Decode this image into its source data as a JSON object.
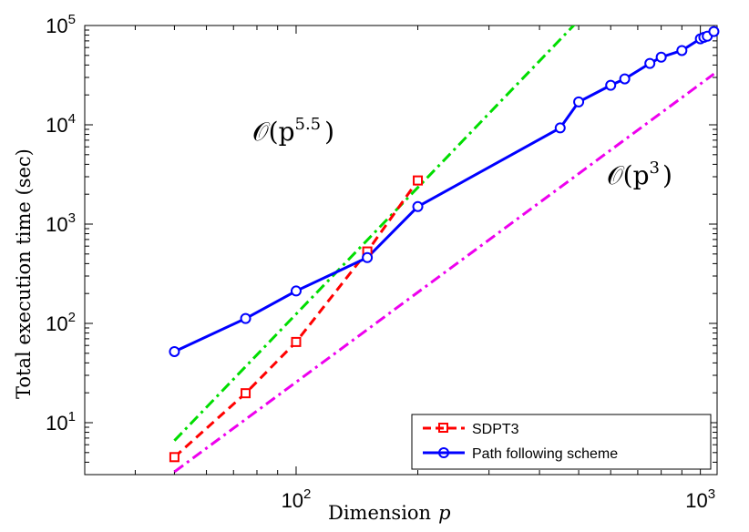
{
  "chart_data": {
    "type": "line",
    "xscale": "log",
    "yscale": "log",
    "xlabel": "Dimension",
    "xlabel_var": "p",
    "ylabel": "Total execution time (sec)",
    "xlim": [
      30,
      1100
    ],
    "ylim": [
      3,
      100000
    ],
    "x_ticks": [
      {
        "value": 100,
        "base": "10",
        "exp": "2"
      },
      {
        "value": 1000,
        "base": "10",
        "exp": "3"
      }
    ],
    "y_ticks": [
      {
        "value": 10,
        "base": "10",
        "exp": "1"
      },
      {
        "value": 100,
        "base": "10",
        "exp": "2"
      },
      {
        "value": 1000,
        "base": "10",
        "exp": "3"
      },
      {
        "value": 10000,
        "base": "10",
        "exp": "4"
      },
      {
        "value": 100000,
        "base": "10",
        "exp": "5"
      }
    ],
    "series": [
      {
        "name": "SDPT3",
        "color": "#ff0000",
        "dash": "dashed",
        "marker": "square",
        "x": [
          50,
          75,
          100,
          150,
          200
        ],
        "y": [
          4.5,
          19.8,
          65,
          530,
          2750
        ]
      },
      {
        "name": "Path following scheme",
        "color": "#0000ff",
        "dash": "solid",
        "marker": "circle",
        "x": [
          50,
          75,
          100,
          150,
          200,
          450,
          500,
          600,
          650,
          750,
          800,
          900,
          1000,
          1020,
          1040,
          1080
        ],
        "y": [
          52,
          112,
          212,
          460,
          1500,
          9300,
          17000,
          25000,
          29000,
          41500,
          48000,
          56000,
          73500,
          76000,
          78000,
          87000
        ]
      }
    ],
    "reference_lines": [
      {
        "name": "O(p^5.5)",
        "color": "#00dd00",
        "dash": "dashdot",
        "x": [
          50,
          500
        ],
        "y": [
          6.6,
          113000
        ]
      },
      {
        "name": "O(p^3)",
        "color": "#ee00ee",
        "dash": "dashdot",
        "x": [
          50,
          1080
        ],
        "y": [
          3.2,
          32500
        ]
      }
    ],
    "annotations": [
      {
        "base": "𝒪(p",
        "exp": "5.5",
        "close": ")"
      },
      {
        "base": "𝒪(p",
        "exp": "3",
        "close": ")"
      }
    ],
    "legend": {
      "position": "bottom-right",
      "entries": [
        "SDPT3",
        "Path following scheme"
      ]
    },
    "grid": false
  }
}
